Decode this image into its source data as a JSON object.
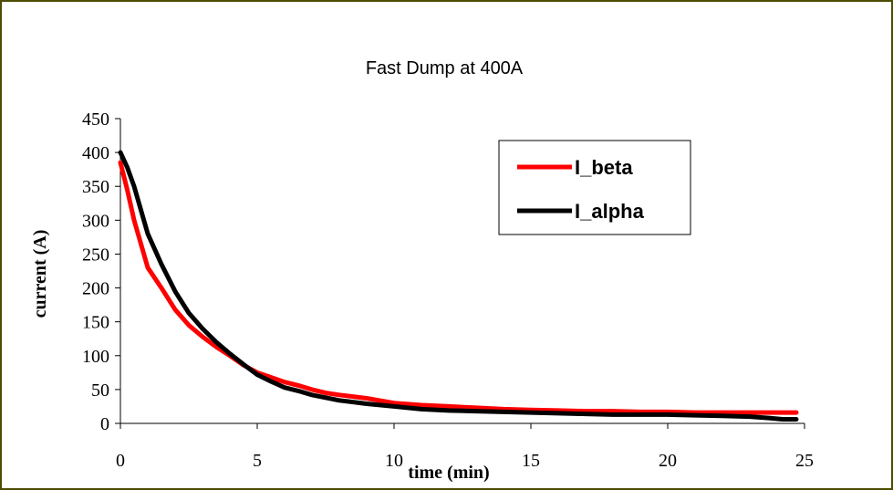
{
  "chart_data": {
    "type": "line",
    "title": "Fast Dump at 400A",
    "xlabel": "time (min)",
    "ylabel": "current (A)",
    "xlim": [
      0,
      25
    ],
    "ylim": [
      0,
      450
    ],
    "xticks": [
      0,
      5,
      10,
      15,
      20,
      25
    ],
    "yticks": [
      0,
      50,
      100,
      150,
      200,
      250,
      300,
      350,
      400,
      450
    ],
    "grid": false,
    "legend_position": "top-right",
    "series": [
      {
        "name": "I_beta",
        "color": "#ff0000",
        "x": [
          0,
          0.25,
          0.5,
          1,
          1.5,
          2,
          2.5,
          3,
          3.5,
          4,
          4.5,
          5,
          5.5,
          6,
          6.5,
          7,
          7.5,
          8,
          9,
          10,
          11,
          12,
          13,
          14,
          15,
          16,
          17,
          18,
          19,
          20,
          21,
          22,
          23,
          24,
          24.7
        ],
        "y": [
          385,
          345,
          300,
          230,
          200,
          168,
          145,
          128,
          113,
          100,
          86,
          75,
          68,
          61,
          56,
          50,
          45,
          42,
          37,
          30,
          27,
          25,
          23,
          21,
          20,
          19,
          18,
          18,
          17,
          17,
          16,
          16,
          16,
          16,
          16
        ]
      },
      {
        "name": "I_alpha",
        "color": "#000000",
        "x": [
          0,
          0.25,
          0.5,
          1,
          1.5,
          2,
          2.5,
          3,
          3.5,
          4,
          4.5,
          5,
          5.5,
          6,
          6.5,
          7,
          7.5,
          8,
          9,
          10,
          11,
          12,
          13,
          14,
          15,
          16,
          17,
          18,
          19,
          20,
          21,
          22,
          23,
          23.7,
          24.2,
          24.7
        ],
        "y": [
          400,
          378,
          350,
          280,
          235,
          195,
          163,
          140,
          120,
          103,
          87,
          72,
          62,
          53,
          48,
          42,
          38,
          34,
          29,
          25,
          21,
          19,
          18,
          17,
          16,
          15,
          14,
          13,
          13,
          13,
          12,
          11,
          10,
          8,
          6,
          6
        ]
      }
    ]
  }
}
